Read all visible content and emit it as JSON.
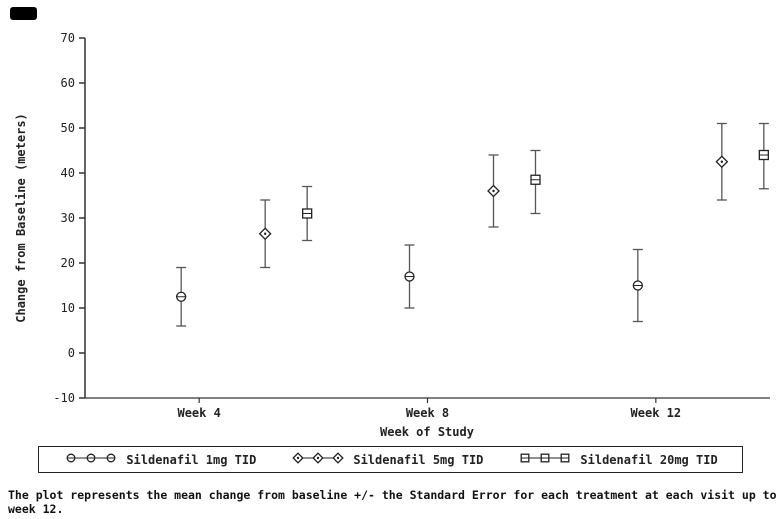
{
  "chart_data": {
    "type": "scatter",
    "title": "",
    "xlabel": "Week of Study",
    "ylabel": "Change from Baseline (meters)",
    "categories": [
      "Week 4",
      "Week 8",
      "Week 12"
    ],
    "ylim": [
      -10,
      70
    ],
    "yticks": [
      -10,
      0,
      10,
      20,
      30,
      40,
      50,
      60,
      70
    ],
    "grid": false,
    "legend_position": "bottom",
    "series": [
      {
        "name": "Sildenafil 1mg TID",
        "marker": "circle",
        "means": [
          12.5,
          17,
          15
        ],
        "err_low": [
          6,
          10,
          7
        ],
        "err_high": [
          19,
          24,
          23
        ]
      },
      {
        "name": "Sildenafil 5mg TID",
        "marker": "diamond",
        "means": [
          26.5,
          36,
          42.5
        ],
        "err_low": [
          19,
          28,
          34
        ],
        "err_high": [
          34,
          44,
          51
        ]
      },
      {
        "name": "Sildenafil 20mg TID",
        "marker": "square",
        "means": [
          31,
          38.5,
          44
        ],
        "err_low": [
          25,
          31,
          36.5
        ],
        "err_high": [
          37,
          45,
          51
        ]
      }
    ],
    "caption": "The plot represents the mean change from baseline +/- the Standard Error for each treatment at each visit up to week 12.",
    "colors": {
      "axis": "#333333",
      "error": "#555555",
      "marker": "#222222",
      "marker_fill": "#ffffff"
    }
  }
}
